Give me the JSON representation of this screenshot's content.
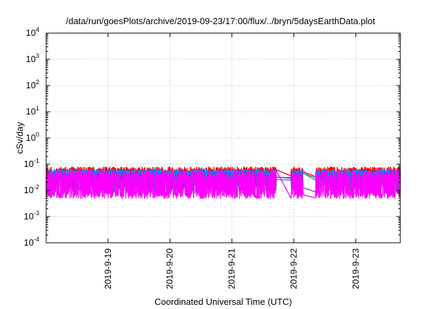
{
  "chart_data": {
    "type": "line",
    "title": "/data/run/goesPlots/archive/2019-09-23/17:00/flux/../bryn/5daysEarthData.plot",
    "xlabel": "Coordinated Universal Time (UTC)",
    "ylabel": "cSv/day",
    "x_start": "2019-9-18",
    "x_end": "2019-9-23",
    "xlim_days": [
      0.0,
      5.72
    ],
    "xticks": [
      {
        "label": "2019-9-19",
        "day": 1
      },
      {
        "label": "2019-9-20",
        "day": 2
      },
      {
        "label": "2019-9-21",
        "day": 3
      },
      {
        "label": "2019-9-22",
        "day": 4
      },
      {
        "label": "2019-9-23",
        "day": 5
      }
    ],
    "yscale": "log",
    "ylim": [
      0.0001,
      10000
    ],
    "yticks": [
      {
        "base": "10",
        "exp": "-4",
        "value": 0.0001
      },
      {
        "base": "10",
        "exp": "-3",
        "value": 0.001
      },
      {
        "base": "10",
        "exp": "-2",
        "value": 0.01
      },
      {
        "base": "10",
        "exp": "-1",
        "value": 0.1
      },
      {
        "base": "10",
        "exp": "0",
        "value": 1
      },
      {
        "base": "10",
        "exp": "1",
        "value": 10
      },
      {
        "base": "10",
        "exp": "2",
        "value": 100
      },
      {
        "base": "10",
        "exp": "3",
        "value": 1000
      },
      {
        "base": "10",
        "exp": "4",
        "value": 10000
      }
    ],
    "grid": true,
    "gaps_days": [
      [
        3.72,
        3.95
      ],
      [
        4.15,
        4.35
      ]
    ],
    "series": [
      {
        "color": "#ff0000",
        "base": 0.055,
        "lowBase": 0.038,
        "amp": 0.22,
        "seed": 11
      },
      {
        "color": "#00aa66",
        "base": 0.036,
        "lowBase": 0.02,
        "amp": 0.28,
        "seed": 23
      },
      {
        "color": "#0088ff",
        "base": 0.048,
        "lowBase": 0.03,
        "amp": 0.2,
        "seed": 37
      },
      {
        "color": "#8833cc",
        "base": 0.03,
        "lowBase": 0.011,
        "amp": 0.35,
        "seed": 51
      },
      {
        "color": "#ff00ff",
        "base": 0.03,
        "lowBase": 0.0065,
        "amp": 0.45,
        "seed": 73
      }
    ]
  }
}
